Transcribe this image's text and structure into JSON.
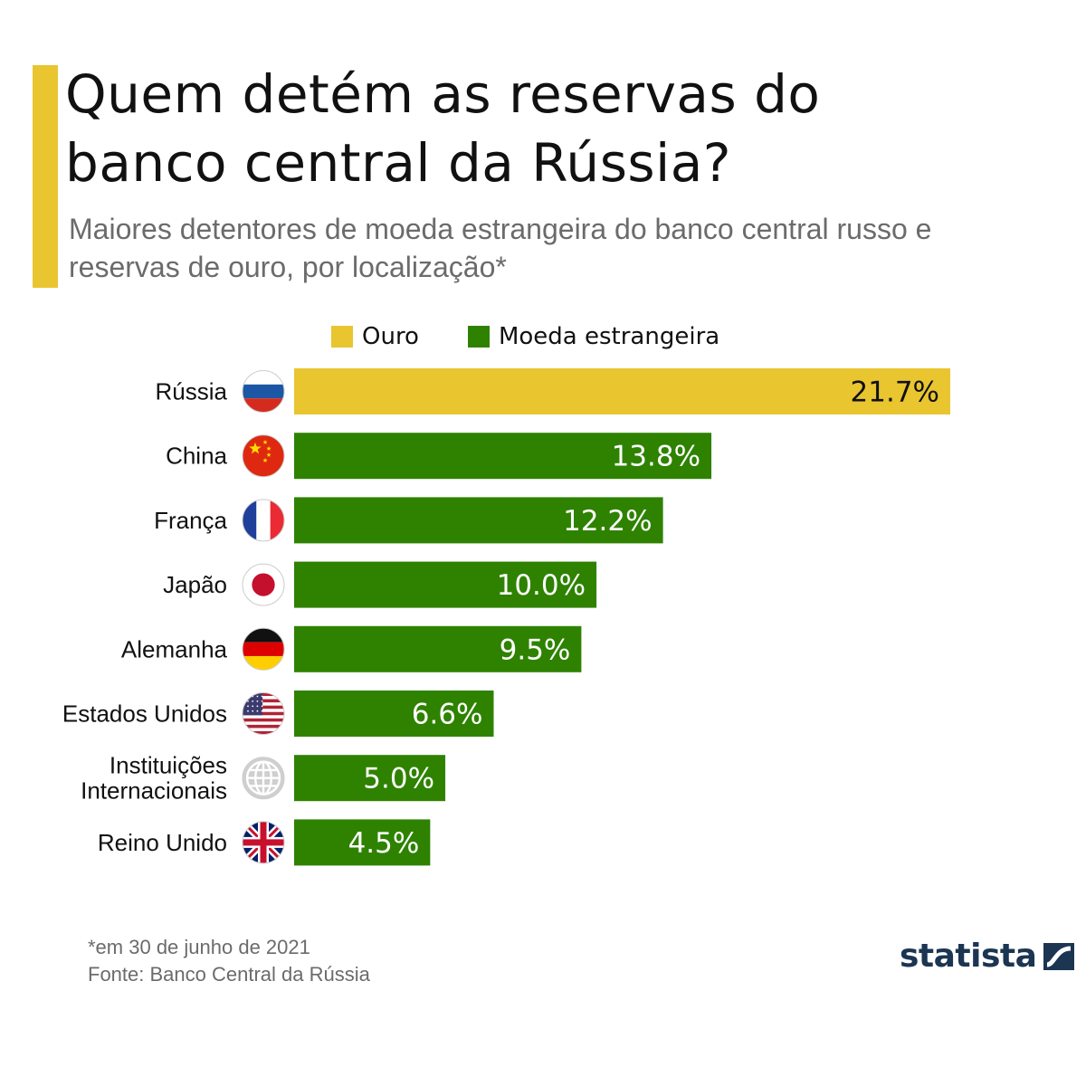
{
  "header": {
    "title_line1": "Quem detém as reservas do",
    "title_line2": "banco central da Rússia?",
    "subtitle_line1": "Maiores detentores de moeda estrangeira do banco central russo e",
    "subtitle_line2": "reservas de ouro, por localização*"
  },
  "legend": {
    "items": [
      {
        "label": "Ouro",
        "color": "#e9c530"
      },
      {
        "label": "Moeda estrangeira",
        "color": "#2e8200"
      }
    ]
  },
  "chart_data": {
    "type": "bar",
    "orientation": "horizontal",
    "title": "Quem detém as reservas do banco central da Rússia?",
    "subtitle": "Maiores detentores de moeda estrangeira do banco central russo e reservas de ouro, por localização*",
    "xlabel": "",
    "ylabel": "",
    "unit": "%",
    "xlim": [
      0,
      21.7
    ],
    "grid": false,
    "legend_position": "top",
    "series_names": [
      "Ouro",
      "Moeda estrangeira"
    ],
    "categories": [
      {
        "label": "Rússia",
        "label_lines": [
          "Rússia"
        ],
        "flag": "russia-flag-icon",
        "series": "Ouro",
        "value": 21.7,
        "value_label": "21.7%"
      },
      {
        "label": "China",
        "label_lines": [
          "China"
        ],
        "flag": "china-flag-icon",
        "series": "Moeda estrangeira",
        "value": 13.8,
        "value_label": "13.8%"
      },
      {
        "label": "França",
        "label_lines": [
          "França"
        ],
        "flag": "france-flag-icon",
        "series": "Moeda estrangeira",
        "value": 12.2,
        "value_label": "12.2%"
      },
      {
        "label": "Japão",
        "label_lines": [
          "Japão"
        ],
        "flag": "japan-flag-icon",
        "series": "Moeda estrangeira",
        "value": 10.0,
        "value_label": "10.0%"
      },
      {
        "label": "Alemanha",
        "label_lines": [
          "Alemanha"
        ],
        "flag": "germany-flag-icon",
        "series": "Moeda estrangeira",
        "value": 9.5,
        "value_label": "9.5%"
      },
      {
        "label": "Estados Unidos",
        "label_lines": [
          "Estados Unidos"
        ],
        "flag": "usa-flag-icon",
        "series": "Moeda estrangeira",
        "value": 6.6,
        "value_label": "6.6%"
      },
      {
        "label": "Instituições Internacionais",
        "label_lines": [
          "Instituições",
          "Internacionais"
        ],
        "flag": "globe-icon",
        "series": "Moeda estrangeira",
        "value": 5.0,
        "value_label": "5.0%"
      },
      {
        "label": "Reino Unido",
        "label_lines": [
          "Reino Unido"
        ],
        "flag": "uk-flag-icon",
        "series": "Moeda estrangeira",
        "value": 4.5,
        "value_label": "4.5%"
      }
    ]
  },
  "footer": {
    "note": "*em 30 de junho de 2021",
    "source": "Fonte: Banco Central da Rússia",
    "logo_text": "statista"
  },
  "colors": {
    "accent": "#e9c530",
    "gold": "#e9c530",
    "foreign": "#2e8200",
    "title": "#111111",
    "subtitle": "#6b6b6b",
    "logo": "#1b3552"
  }
}
